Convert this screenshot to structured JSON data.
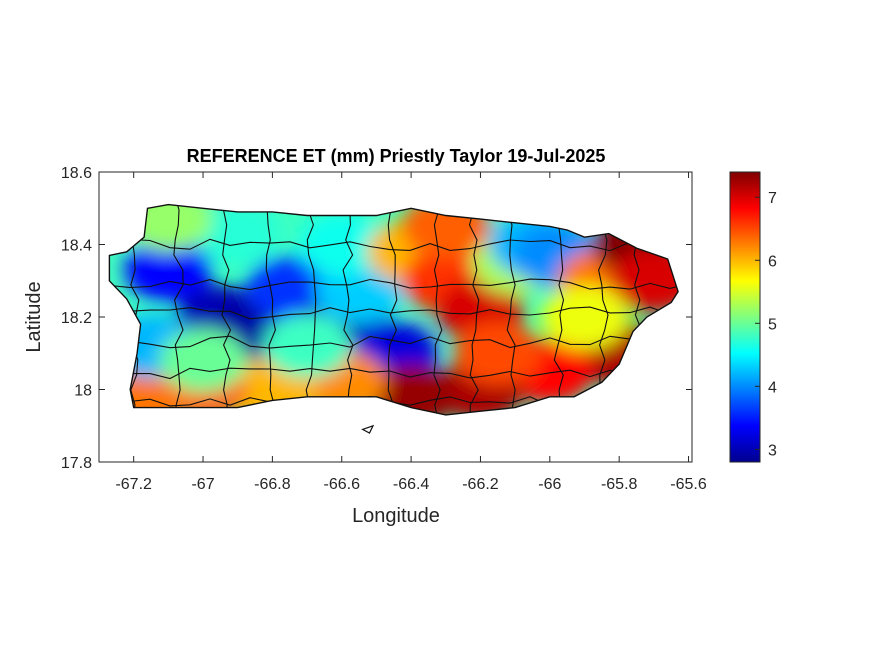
{
  "chart_data": {
    "type": "heatmap",
    "title": "REFERENCE ET (mm) Priestly Taylor 19-Jul-2025",
    "xlabel": "Longitude",
    "ylabel": "Latitude",
    "xlim": [
      -67.3,
      -65.59
    ],
    "ylim": [
      17.8,
      18.6
    ],
    "xticks": [
      -67.2,
      -67,
      -66.8,
      -66.6,
      -66.4,
      -66.2,
      -66,
      -65.8,
      -65.6
    ],
    "xtick_labels": [
      "-67.2",
      "-67",
      "-66.8",
      "-66.6",
      "-66.4",
      "-66.2",
      "-66",
      "-65.8",
      "-65.6"
    ],
    "yticks": [
      17.8,
      18,
      18.2,
      18.4,
      18.6
    ],
    "ytick_labels": [
      "17.8",
      "18",
      "18.2",
      "18.4",
      "18.6"
    ],
    "colorbar": {
      "colormap": "jet",
      "range": [
        2.8,
        7.4
      ],
      "ticks": [
        3,
        4,
        5,
        6,
        7
      ],
      "tick_labels": [
        "3",
        "4",
        "5",
        "6",
        "7"
      ]
    },
    "grid": false,
    "region_outline": [
      [
        -67.27,
        18.37
      ],
      [
        -67.22,
        18.38
      ],
      [
        -67.17,
        18.42
      ],
      [
        -67.16,
        18.5
      ],
      [
        -67.1,
        18.51
      ],
      [
        -67.0,
        18.5
      ],
      [
        -66.9,
        18.49
      ],
      [
        -66.8,
        18.49
      ],
      [
        -66.7,
        18.48
      ],
      [
        -66.6,
        18.48
      ],
      [
        -66.5,
        18.48
      ],
      [
        -66.4,
        18.5
      ],
      [
        -66.3,
        18.48
      ],
      [
        -66.2,
        18.47
      ],
      [
        -66.1,
        18.46
      ],
      [
        -66.0,
        18.45
      ],
      [
        -65.95,
        18.44
      ],
      [
        -65.9,
        18.42
      ],
      [
        -65.83,
        18.43
      ],
      [
        -65.75,
        18.39
      ],
      [
        -65.66,
        18.36
      ],
      [
        -65.63,
        18.27
      ],
      [
        -65.65,
        18.24
      ],
      [
        -65.72,
        18.2
      ],
      [
        -65.76,
        18.16
      ],
      [
        -65.8,
        18.07
      ],
      [
        -65.85,
        18.02
      ],
      [
        -65.93,
        17.98
      ],
      [
        -66.0,
        17.98
      ],
      [
        -66.1,
        17.95
      ],
      [
        -66.2,
        17.94
      ],
      [
        -66.3,
        17.93
      ],
      [
        -66.4,
        17.95
      ],
      [
        -66.5,
        17.98
      ],
      [
        -66.6,
        17.98
      ],
      [
        -66.7,
        17.98
      ],
      [
        -66.8,
        17.97
      ],
      [
        -66.9,
        17.95
      ],
      [
        -67.0,
        17.95
      ],
      [
        -67.1,
        17.95
      ],
      [
        -67.2,
        17.95
      ],
      [
        -67.21,
        18.0
      ],
      [
        -67.19,
        18.1
      ],
      [
        -67.18,
        18.18
      ],
      [
        -67.22,
        18.25
      ],
      [
        -67.27,
        18.3
      ],
      [
        -67.27,
        18.37
      ]
    ],
    "islets": [
      [
        [
          -66.54,
          17.89
        ],
        [
          -66.51,
          17.9
        ],
        [
          -66.52,
          17.88
        ],
        [
          -66.54,
          17.89
        ]
      ]
    ],
    "et_field": [
      {
        "lon": -67.1,
        "lat": 18.33,
        "value": 3.4
      },
      {
        "lon": -66.95,
        "lat": 18.2,
        "value": 3.0
      },
      {
        "lon": -66.85,
        "lat": 18.17,
        "value": 2.9
      },
      {
        "lon": -66.75,
        "lat": 18.28,
        "value": 3.6
      },
      {
        "lon": -66.6,
        "lat": 18.18,
        "value": 3.1
      },
      {
        "lon": -66.52,
        "lat": 18.12,
        "value": 2.9
      },
      {
        "lon": -66.45,
        "lat": 18.1,
        "value": 3.2
      },
      {
        "lon": -66.55,
        "lat": 18.27,
        "value": 4.3
      },
      {
        "lon": -66.6,
        "lat": 18.4,
        "value": 4.6
      },
      {
        "lon": -66.9,
        "lat": 18.43,
        "value": 4.7
      },
      {
        "lon": -67.1,
        "lat": 18.47,
        "value": 5.2
      },
      {
        "lon": -66.4,
        "lat": 18.38,
        "value": 6.0
      },
      {
        "lon": -66.3,
        "lat": 18.3,
        "value": 6.6
      },
      {
        "lon": -66.2,
        "lat": 18.22,
        "value": 7.0
      },
      {
        "lon": -66.1,
        "lat": 18.35,
        "value": 5.3
      },
      {
        "lon": -66.05,
        "lat": 18.4,
        "value": 4.2
      },
      {
        "lon": -65.98,
        "lat": 18.37,
        "value": 4.0
      },
      {
        "lon": -65.85,
        "lat": 18.3,
        "value": 6.3
      },
      {
        "lon": -65.75,
        "lat": 18.4,
        "value": 7.4
      },
      {
        "lon": -65.7,
        "lat": 18.3,
        "value": 7.0
      },
      {
        "lon": -65.8,
        "lat": 18.1,
        "value": 7.2
      },
      {
        "lon": -66.0,
        "lat": 18.05,
        "value": 6.8
      },
      {
        "lon": -66.2,
        "lat": 18.0,
        "value": 7.2
      },
      {
        "lon": -66.4,
        "lat": 17.98,
        "value": 7.3
      },
      {
        "lon": -66.6,
        "lat": 18.02,
        "value": 6.2
      },
      {
        "lon": -66.8,
        "lat": 18.0,
        "value": 6.0
      },
      {
        "lon": -67.0,
        "lat": 18.0,
        "value": 6.4
      },
      {
        "lon": -67.15,
        "lat": 17.98,
        "value": 6.3
      },
      {
        "lon": -67.15,
        "lat": 18.12,
        "value": 4.2
      },
      {
        "lon": -67.0,
        "lat": 18.08,
        "value": 5.0
      },
      {
        "lon": -66.3,
        "lat": 18.45,
        "value": 6.4
      },
      {
        "lon": -66.15,
        "lat": 18.1,
        "value": 6.5
      },
      {
        "lon": -65.9,
        "lat": 18.2,
        "value": 5.6
      },
      {
        "lon": -66.7,
        "lat": 18.12,
        "value": 4.8
      }
    ]
  }
}
